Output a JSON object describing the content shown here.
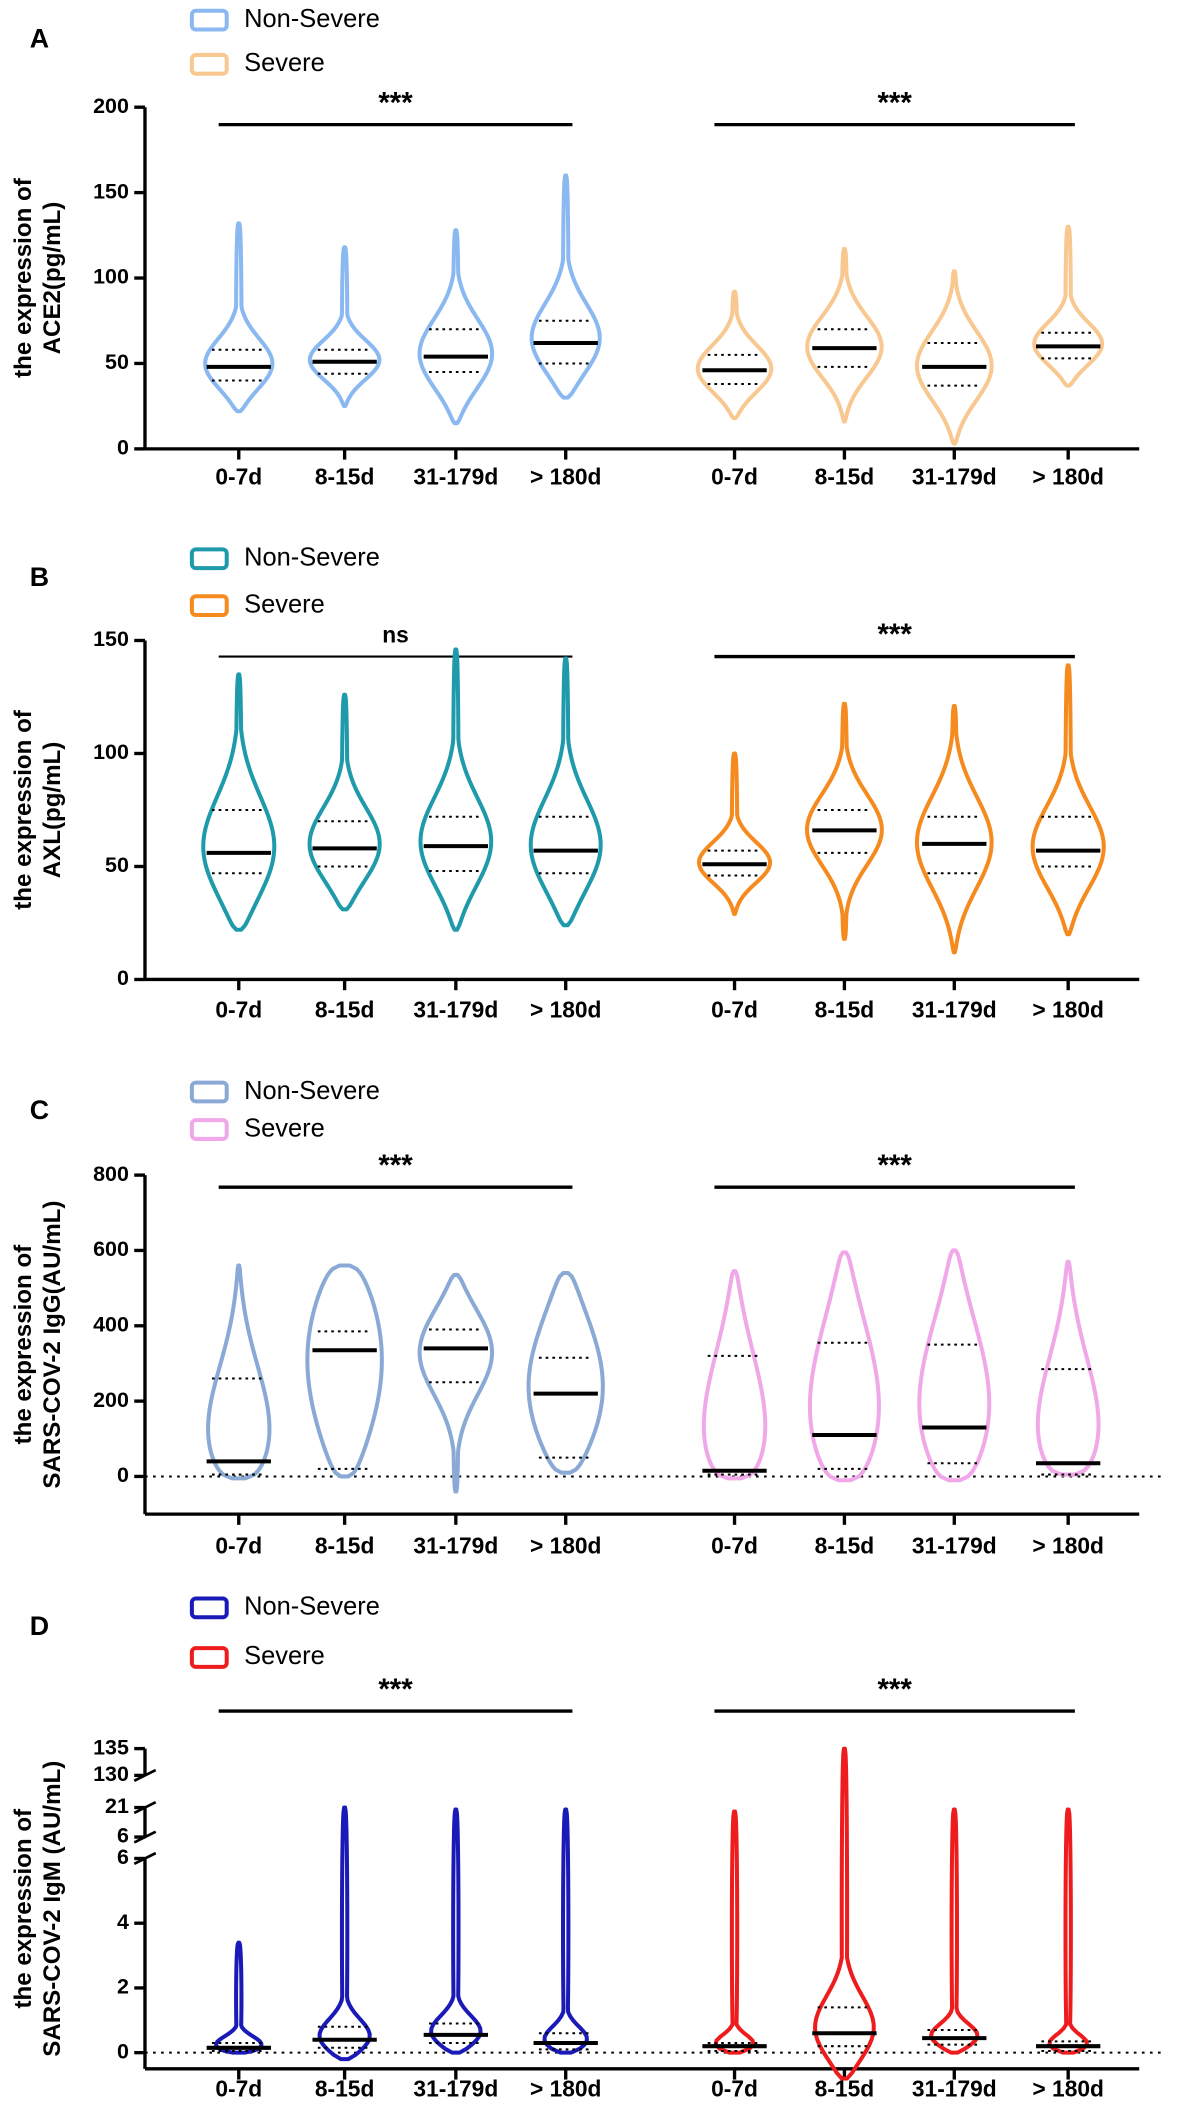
{
  "chart_data": [
    {
      "type": "violin",
      "panel": "A",
      "ylabel": [
        "the expression of",
        "ACE2(pg/mL)"
      ],
      "categories": [
        "0-7d",
        "8-15d",
        "31-179d",
        "> 180d"
      ],
      "ylim": [
        0,
        200
      ],
      "yticks": [
        0,
        50,
        100,
        150,
        200
      ],
      "zero_line": false,
      "series": [
        {
          "name": "Non-Severe",
          "color": "#8ab8f0",
          "significance": "***",
          "median": [
            48,
            51,
            54,
            62
          ],
          "min": [
            22,
            25,
            15,
            30
          ],
          "max": [
            132,
            118,
            128,
            160
          ],
          "q1": [
            40,
            44,
            45,
            50
          ],
          "q3": [
            58,
            58,
            70,
            75
          ]
        },
        {
          "name": "Severe",
          "color": "#f8c890",
          "significance": "***",
          "median": [
            46,
            59,
            48,
            60
          ],
          "min": [
            18,
            16,
            3,
            37
          ],
          "max": [
            92,
            117,
            104,
            130
          ],
          "q1": [
            38,
            48,
            37,
            53
          ],
          "q3": [
            55,
            70,
            62,
            68
          ]
        }
      ]
    },
    {
      "type": "violin",
      "panel": "B",
      "ylabel": [
        "the expression of",
        "AXL(pg/mL)"
      ],
      "categories": [
        "0-7d",
        "8-15d",
        "31-179d",
        "> 180d"
      ],
      "ylim": [
        0,
        150
      ],
      "yticks": [
        0,
        50,
        100,
        150
      ],
      "zero_line": false,
      "series": [
        {
          "name": "Non-Severe",
          "color": "#1e9aaa",
          "significance": "ns",
          "median": [
            56,
            58,
            59,
            57
          ],
          "min": [
            22,
            31,
            22,
            24
          ],
          "max": [
            135,
            126,
            146,
            142
          ],
          "q1": [
            47,
            50,
            48,
            47
          ],
          "q3": [
            75,
            70,
            72,
            72
          ]
        },
        {
          "name": "Severe",
          "color": "#f58a1e",
          "significance": "***",
          "median": [
            51,
            66,
            60,
            57
          ],
          "min": [
            29,
            18,
            12,
            20
          ],
          "max": [
            100,
            122,
            121,
            139
          ],
          "q1": [
            46,
            56,
            47,
            50
          ],
          "q3": [
            57,
            75,
            72,
            72
          ]
        }
      ]
    },
    {
      "type": "violin",
      "panel": "C",
      "ylabel": [
        "the expression of",
        "SARS-COV-2 IgG(AU/mL)"
      ],
      "categories": [
        "0-7d",
        "8-15d",
        "31-179d",
        "> 180d"
      ],
      "ylim": [
        -100,
        800
      ],
      "yticks": [
        0,
        200,
        400,
        600,
        800
      ],
      "zero_line": true,
      "series": [
        {
          "name": "Non-Severe",
          "color": "#8aaad5",
          "significance": "***",
          "median": [
            40,
            335,
            340,
            220
          ],
          "min": [
            -5,
            0,
            -40,
            10
          ],
          "max": [
            560,
            560,
            535,
            540
          ],
          "q1": [
            5,
            20,
            250,
            50
          ],
          "q3": [
            260,
            385,
            390,
            315
          ]
        },
        {
          "name": "Severe",
          "color": "#f0a8e8",
          "significance": "***",
          "median": [
            15,
            110,
            130,
            35
          ],
          "min": [
            -5,
            -10,
            -10,
            5
          ],
          "max": [
            545,
            595,
            600,
            570
          ],
          "q1": [
            5,
            20,
            35,
            5
          ],
          "q3": [
            320,
            355,
            350,
            285
          ]
        }
      ]
    },
    {
      "type": "violin",
      "panel": "D",
      "ylabel": [
        "the expression of",
        "SARS-COV-2 IgM (AU/mL)"
      ],
      "categories": [
        "0-7d",
        "8-15d",
        "31-179d",
        "> 180d"
      ],
      "yaxis_segments": [
        {
          "ylim": [
            -0.5,
            6
          ],
          "yticks": [
            0,
            2,
            4,
            6
          ]
        },
        {
          "ylim": [
            6,
            21
          ],
          "yticks": [
            6,
            21
          ]
        },
        {
          "ylim": [
            130,
            135
          ],
          "yticks": [
            130,
            135
          ]
        }
      ],
      "zero_line": true,
      "series": [
        {
          "name": "Non-Severe",
          "color": "#1a1ab8",
          "significance": "***",
          "median": [
            0.15,
            0.4,
            0.55,
            0.3
          ],
          "min": [
            0,
            -0.2,
            0,
            0
          ],
          "max": [
            3.4,
            21,
            20,
            20
          ],
          "q1": [
            0.05,
            0.15,
            0.3,
            0.1
          ],
          "q3": [
            0.3,
            0.8,
            0.9,
            0.6
          ]
        },
        {
          "name": "Severe",
          "color": "#ee1c1c",
          "significance": "***",
          "median": [
            0.2,
            0.6,
            0.45,
            0.2
          ],
          "min": [
            0,
            -0.8,
            0,
            0
          ],
          "max": [
            19,
            135,
            20,
            20
          ],
          "q1": [
            0.05,
            0.2,
            0.25,
            0.05
          ],
          "q3": [
            0.3,
            1.4,
            0.7,
            0.35
          ]
        }
      ]
    }
  ]
}
